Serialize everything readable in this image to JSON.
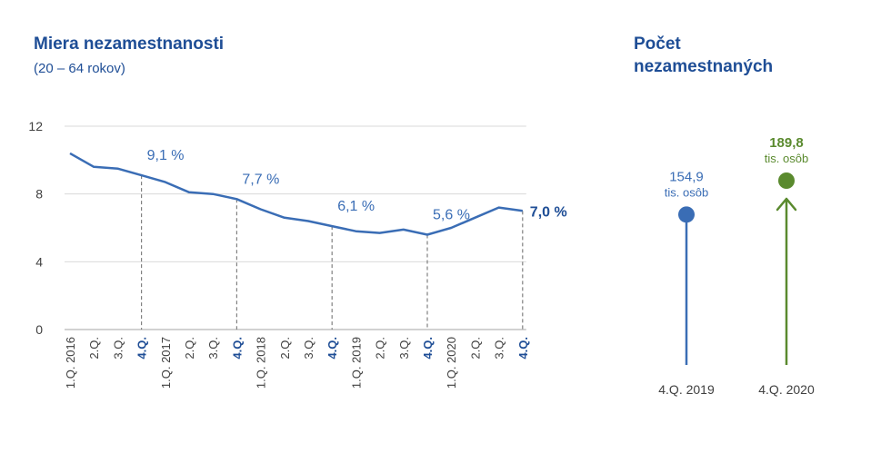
{
  "left_chart": {
    "title": "Miera nezamestnanosti",
    "subtitle": "(20 – 64 rokov)"
  },
  "right_chart": {
    "title_line1": "Počet",
    "title_line2": "nezamestnaných"
  },
  "colors": {
    "blue": "#3a6db5",
    "dark_blue": "#1f4e96",
    "green": "#5a8a2e",
    "axis_text": "#404040",
    "grid": "#d9d9d9",
    "dash": "#808080"
  },
  "chart_data": [
    {
      "type": "line",
      "title": "Miera nezamestnanosti",
      "subtitle": "(20 – 64 rokov)",
      "categories": [
        "1.Q. 2016",
        "2.Q.",
        "3.Q.",
        "4.Q.",
        "1.Q. 2017",
        "2.Q.",
        "3.Q.",
        "4.Q.",
        "1.Q. 2018",
        "2.Q.",
        "3.Q.",
        "4.Q.",
        "1.Q. 2019",
        "2.Q.",
        "3.Q.",
        "4.Q.",
        "1.Q. 2020",
        "2.Q.",
        "3.Q.",
        "4.Q."
      ],
      "bold_categories": [
        3,
        7,
        11,
        15,
        19
      ],
      "series": [
        {
          "values": [
            10.4,
            9.6,
            9.5,
            9.1,
            8.7,
            8.1,
            8.0,
            7.7,
            7.1,
            6.6,
            6.4,
            6.1,
            5.8,
            5.7,
            5.9,
            5.6,
            6.0,
            6.6,
            7.2,
            7.0
          ]
        }
      ],
      "yticks": [
        0,
        4,
        8,
        12
      ],
      "ylim": [
        0,
        12
      ],
      "annotations": [
        {
          "index": 3,
          "label": "9,1 %"
        },
        {
          "index": 7,
          "label": "7,7 %"
        },
        {
          "index": 11,
          "label": "6,1 %"
        },
        {
          "index": 15,
          "label": "5,6 %"
        },
        {
          "index": 19,
          "label": "7,0 %"
        }
      ]
    },
    {
      "type": "lollipop",
      "title": "Počet nezamestnaných",
      "items": [
        {
          "category": "4.Q. 2019",
          "value": 154.9,
          "value_label": "154,9",
          "unit": "tis. osôb"
        },
        {
          "category": "4.Q. 2020",
          "value": 189.8,
          "value_label": "189,8",
          "unit": "tis. osôb"
        }
      ]
    }
  ]
}
